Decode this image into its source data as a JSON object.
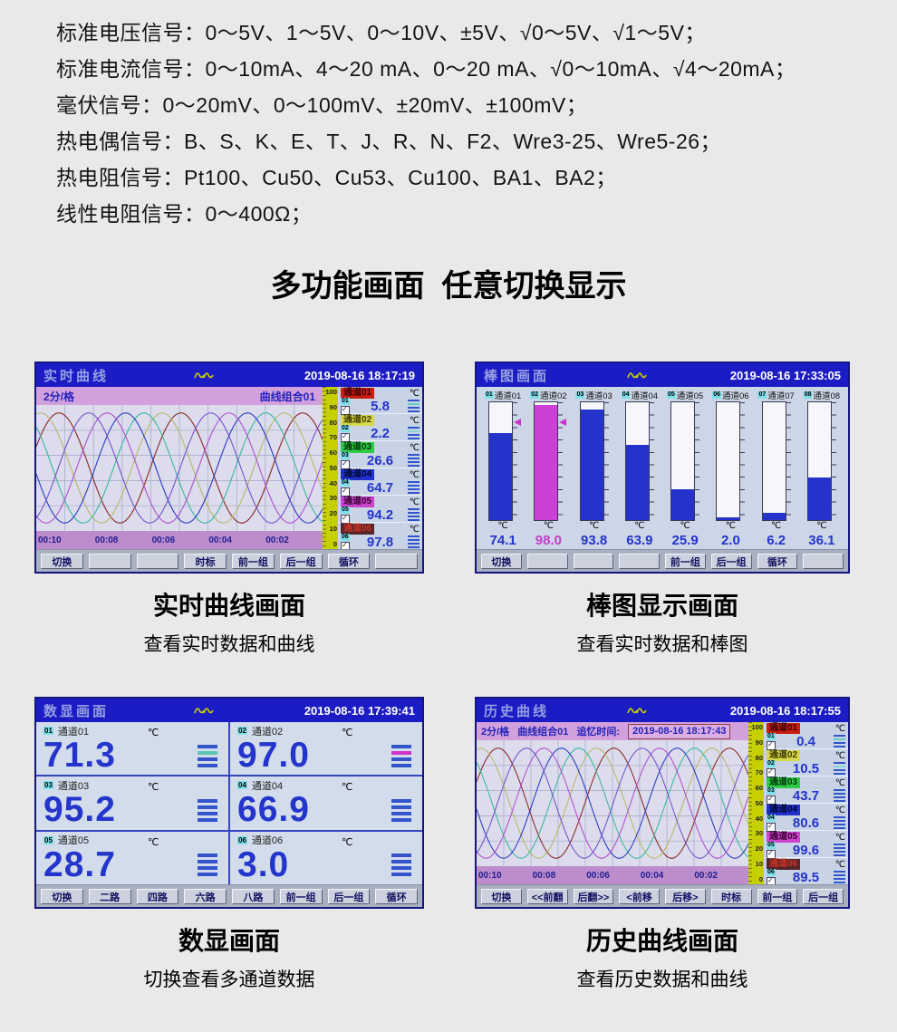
{
  "specs": [
    "标准电压信号：0～5V、1～5V、0～10V、±5V、√0～5V、√1～5V；",
    "标准电流信号：0～10mA、4～20 mA、0～20 mA、√0～10mA、√4～20mA；",
    "毫伏信号：0～20mV、0～100mV、±20mV、±100mV；",
    "热电偶信号：B、S、K、E、T、J、R、N、F2、Wre3-25、Wre5-26；",
    "热电阻信号：Pt100、Cu50、Cu53、Cu100、BA1、BA2；",
    "线性电阻信号：0～400Ω；"
  ],
  "heading": "多功能画面  任意切换显示",
  "icons": {
    "brand": "double-sine-wave"
  },
  "colors": {
    "header_blue": "#1c1cc4",
    "scale_yellow": "#c6cf00",
    "pink_bar": "#d2a0dc",
    "value_blue": "#2334cc"
  },
  "realtime": {
    "title": "实时曲线",
    "datetime": "2019-08-16 18:17:19",
    "scale_div": "2分/格",
    "group": "曲线组合01",
    "scale_ticks": [
      "100",
      "90",
      "80",
      "70",
      "60",
      "50",
      "40",
      "30",
      "20",
      "10",
      "0"
    ],
    "time_ticks": [
      "00:10",
      "00:08",
      "00:06",
      "00:04",
      "00:02"
    ],
    "channels": [
      {
        "id": "01",
        "tag": "通道01",
        "unit": "℃",
        "value": "5.8",
        "bg": "#c81e10",
        "fg": "#3c0000",
        "curve": "#8a2424",
        "accent": "#62ccc4"
      },
      {
        "id": "02",
        "tag": "通道02",
        "unit": "℃",
        "value": "2.2",
        "bg": "#d6d64a",
        "fg": "#3a3a00",
        "curve": "#b8b868",
        "accent": "#8ad4d4"
      },
      {
        "id": "03",
        "tag": "通道03",
        "unit": "℃",
        "value": "26.6",
        "bg": "#2ecc44",
        "fg": "#00360c",
        "curve": "#38b89c"
      },
      {
        "id": "04",
        "tag": "通道04",
        "unit": "℃",
        "value": "64.7",
        "bg": "#2030cc",
        "fg": "#00082e",
        "curve": "#2739c0"
      },
      {
        "id": "05",
        "tag": "通道05",
        "unit": "℃",
        "value": "94.2",
        "bg": "#cc44cc",
        "fg": "#330030",
        "curve": "#b04cd0"
      },
      {
        "id": "06",
        "tag": "通道06",
        "unit": "℃",
        "value": "97.8",
        "bg": "#572428",
        "fg": "#cc3322",
        "curve": "#6f52cc"
      }
    ],
    "buttons": [
      "切换",
      "",
      "",
      "时标",
      "前一组",
      "后一组",
      "循环",
      ""
    ]
  },
  "bargraph": {
    "title": "棒图画面",
    "datetime": "2019-08-16 17:33:05",
    "channels": [
      {
        "id": "01",
        "tag": "通道01",
        "unit": "℃",
        "value": "74.1",
        "pct": 74.1,
        "fill": "#2433cc",
        "vcolor": "#2433cc",
        "marker": 80
      },
      {
        "id": "02",
        "tag": "通道02",
        "unit": "℃",
        "value": "98.0",
        "pct": 98.0,
        "fill": "#cc3fd6",
        "vcolor": "#c43fc8",
        "marker": 80
      },
      {
        "id": "03",
        "tag": "通道03",
        "unit": "℃",
        "value": "93.8",
        "pct": 93.8,
        "fill": "#2433cc",
        "vcolor": "#2433cc"
      },
      {
        "id": "04",
        "tag": "通道04",
        "unit": "℃",
        "value": "63.9",
        "pct": 63.9,
        "fill": "#2433cc",
        "vcolor": "#2433cc"
      },
      {
        "id": "05",
        "tag": "通道05",
        "unit": "℃",
        "value": "25.9",
        "pct": 25.9,
        "fill": "#2433cc",
        "vcolor": "#2433cc"
      },
      {
        "id": "06",
        "tag": "通道06",
        "unit": "℃",
        "value": "2.0",
        "pct": 2.0,
        "fill": "#2433cc",
        "vcolor": "#2433cc"
      },
      {
        "id": "07",
        "tag": "通道07",
        "unit": "℃",
        "value": "6.2",
        "pct": 6.2,
        "fill": "#2433cc",
        "vcolor": "#2433cc"
      },
      {
        "id": "08",
        "tag": "通道08",
        "unit": "℃",
        "value": "36.1",
        "pct": 36.1,
        "fill": "#2433cc",
        "vcolor": "#2433cc"
      }
    ],
    "buttons": [
      "切换",
      "",
      "",
      "",
      "前一组",
      "后一组",
      "循环",
      ""
    ]
  },
  "digital": {
    "title": "数显画面",
    "datetime": "2019-08-16 17:39:41",
    "cells": [
      {
        "id": "01",
        "tag": "通道01",
        "unit": "℃",
        "value": "71.3",
        "accent": "#5cc8b4"
      },
      {
        "id": "02",
        "tag": "通道02",
        "unit": "℃",
        "value": "97.0",
        "accent": "#cc33cc"
      },
      {
        "id": "03",
        "tag": "通道03",
        "unit": "℃",
        "value": "95.2"
      },
      {
        "id": "04",
        "tag": "通道04",
        "unit": "℃",
        "value": "66.9"
      },
      {
        "id": "05",
        "tag": "通道05",
        "unit": "℃",
        "value": "28.7"
      },
      {
        "id": "06",
        "tag": "通道06",
        "unit": "℃",
        "value": "3.0"
      }
    ],
    "buttons": [
      "切换",
      "二路",
      "四路",
      "六路",
      "八路",
      "前一组",
      "后一组",
      "循环"
    ]
  },
  "history": {
    "title": "历史曲线",
    "datetime": "2019-08-16 18:17:55",
    "scale_div": "2分/格",
    "group": "曲线组合01",
    "recall_label": "追忆时间:",
    "recall_time": "2019-08-16 18:17:43",
    "scale_ticks": [
      "100",
      "90",
      "80",
      "70",
      "60",
      "50",
      "40",
      "30",
      "20",
      "10",
      "0"
    ],
    "time_ticks": [
      "00:10",
      "00:08",
      "00:06",
      "00:04",
      "00:02"
    ],
    "channels": [
      {
        "id": "01",
        "tag": "通道01",
        "unit": "℃",
        "value": "0.4",
        "bg": "#c81e10",
        "fg": "#3c0000",
        "curve": "#8a2424",
        "accent": "#62ccc4"
      },
      {
        "id": "02",
        "tag": "通道02",
        "unit": "℃",
        "value": "10.5",
        "bg": "#d6d64a",
        "fg": "#3a3a00",
        "curve": "#b8b868",
        "accent": "#8ad4d4"
      },
      {
        "id": "03",
        "tag": "通道03",
        "unit": "℃",
        "value": "43.7",
        "bg": "#2ecc44",
        "fg": "#00360c",
        "curve": "#38b89c"
      },
      {
        "id": "04",
        "tag": "通道04",
        "unit": "℃",
        "value": "80.6",
        "bg": "#2030cc",
        "fg": "#00082e",
        "curve": "#2739c0"
      },
      {
        "id": "05",
        "tag": "通道05",
        "unit": "℃",
        "value": "99.6",
        "bg": "#cc44cc",
        "fg": "#330030",
        "curve": "#b04cd0"
      },
      {
        "id": "06",
        "tag": "通道06",
        "unit": "℃",
        "value": "89.5",
        "bg": "#572428",
        "fg": "#cc3322",
        "curve": "#6f52cc"
      }
    ],
    "buttons": [
      "切换",
      "<<前翻",
      "后翻>>",
      "<前移",
      "后移>",
      "时标",
      "前一组",
      "后一组"
    ]
  },
  "captions": [
    {
      "title": "实时曲线画面",
      "subtitle": "查看实时数据和曲线"
    },
    {
      "title": "棒图显示画面",
      "subtitle": "查看实时数据和棒图"
    },
    {
      "title": "数显画面",
      "subtitle": "切换查看多通道数据"
    },
    {
      "title": "历史曲线画面",
      "subtitle": "查看历史数据和曲线"
    }
  ]
}
